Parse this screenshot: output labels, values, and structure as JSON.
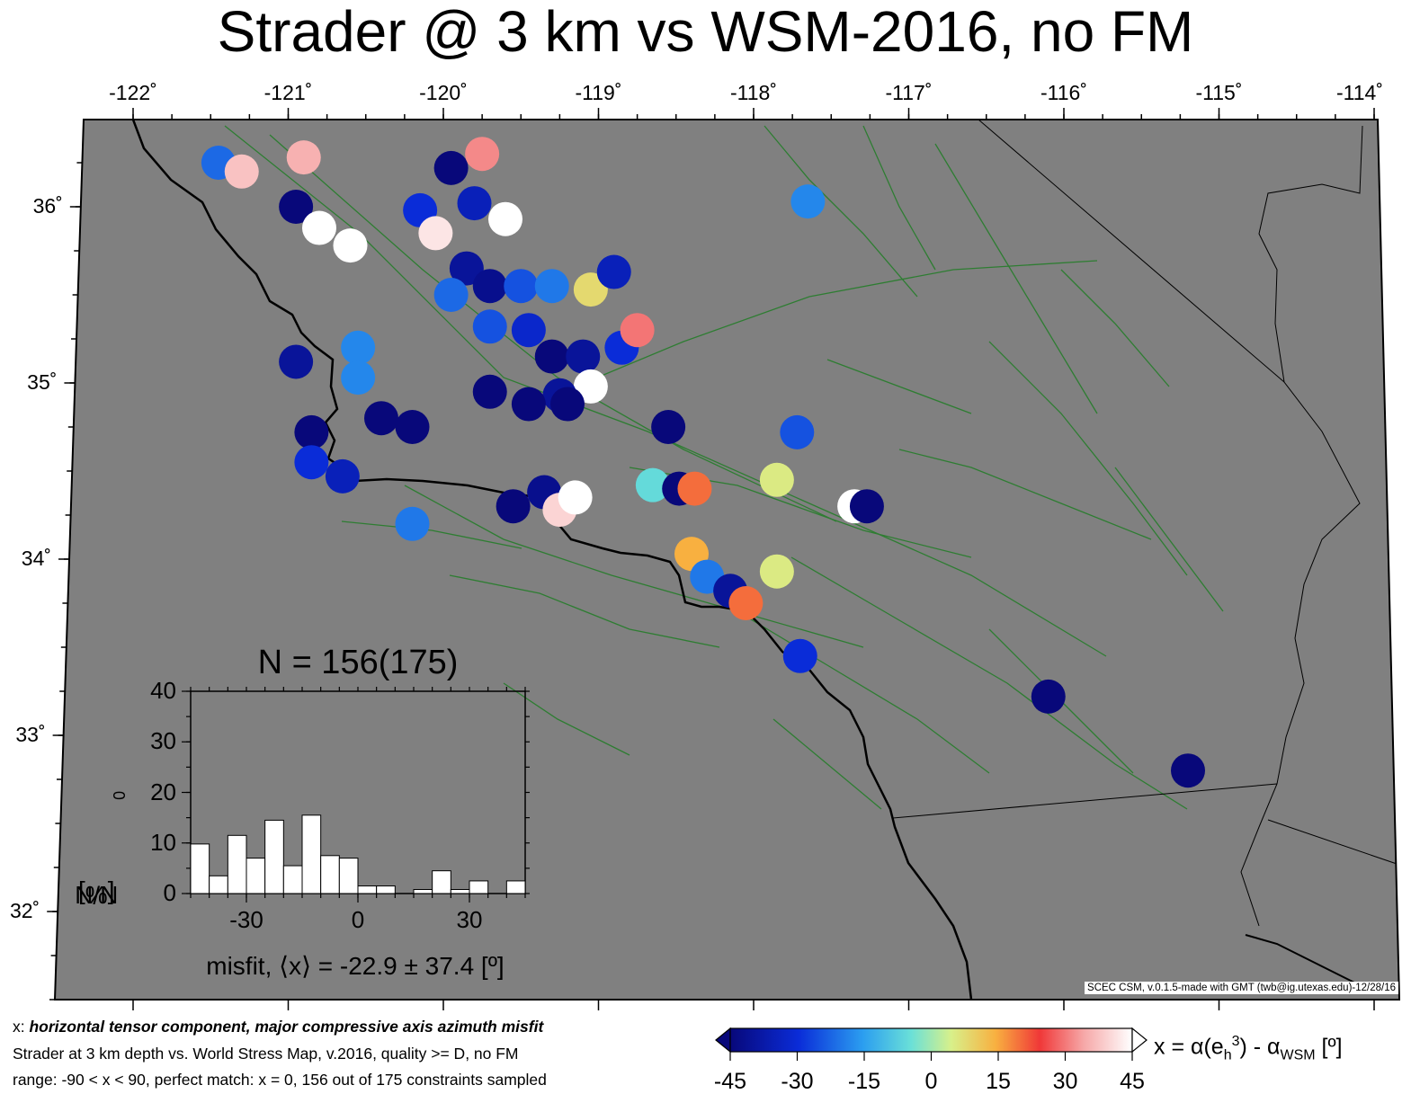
{
  "title": "Strader @ 3 km vs WSM-2016, no FM",
  "map": {
    "lon_ticks": [
      {
        "value": -122,
        "label": "-122˚"
      },
      {
        "value": -121,
        "label": "-121˚"
      },
      {
        "value": -120,
        "label": "-120˚"
      },
      {
        "value": -119,
        "label": "-119˚"
      },
      {
        "value": -118,
        "label": "-118˚"
      },
      {
        "value": -117,
        "label": "-117˚"
      },
      {
        "value": -116,
        "label": "-116˚"
      },
      {
        "value": -115,
        "label": "-115˚"
      },
      {
        "value": -114,
        "label": "-114˚"
      }
    ],
    "lat_ticks": [
      {
        "value": 36,
        "label": "36˚"
      },
      {
        "value": 35,
        "label": "35˚"
      },
      {
        "value": 34,
        "label": "34˚"
      },
      {
        "value": 33,
        "label": "33˚"
      },
      {
        "value": 32,
        "label": "32˚"
      }
    ],
    "background_color": "#808080",
    "coast_color": "#000000",
    "fault_color": "#2e7d32",
    "misfit_patches": [
      {
        "lon": -121.45,
        "lat": 36.25,
        "value": -22
      },
      {
        "lon": -121.3,
        "lat": 36.2,
        "value": 38
      },
      {
        "lon": -120.9,
        "lat": 36.28,
        "value": 36
      },
      {
        "lon": -120.95,
        "lat": 36.0,
        "value": -45
      },
      {
        "lon": -120.8,
        "lat": 35.88,
        "value": 45
      },
      {
        "lon": -120.6,
        "lat": 35.78,
        "value": 45
      },
      {
        "lon": -119.95,
        "lat": 36.22,
        "value": -45
      },
      {
        "lon": -119.75,
        "lat": 36.3,
        "value": 32
      },
      {
        "lon": -119.8,
        "lat": 36.02,
        "value": -35
      },
      {
        "lon": -119.6,
        "lat": 35.93,
        "value": 45
      },
      {
        "lon": -120.15,
        "lat": 35.98,
        "value": -30
      },
      {
        "lon": -120.05,
        "lat": 35.85,
        "value": 42
      },
      {
        "lon": -119.85,
        "lat": 35.65,
        "value": -40
      },
      {
        "lon": -119.95,
        "lat": 35.5,
        "value": -22
      },
      {
        "lon": -119.7,
        "lat": 35.55,
        "value": -42
      },
      {
        "lon": -119.5,
        "lat": 35.55,
        "value": -25
      },
      {
        "lon": -119.3,
        "lat": 35.55,
        "value": -20
      },
      {
        "lon": -119.7,
        "lat": 35.32,
        "value": -25
      },
      {
        "lon": -119.45,
        "lat": 35.3,
        "value": -32
      },
      {
        "lon": -119.3,
        "lat": 35.15,
        "value": -45
      },
      {
        "lon": -119.1,
        "lat": 35.15,
        "value": -40
      },
      {
        "lon": -118.85,
        "lat": 35.2,
        "value": -30
      },
      {
        "lon": -118.75,
        "lat": 35.3,
        "value": 30
      },
      {
        "lon": -119.05,
        "lat": 35.53,
        "value": 8
      },
      {
        "lon": -118.9,
        "lat": 35.63,
        "value": -35
      },
      {
        "lon": -119.05,
        "lat": 34.98,
        "value": 45
      },
      {
        "lon": -119.25,
        "lat": 34.93,
        "value": -40
      },
      {
        "lon": -119.7,
        "lat": 34.95,
        "value": -45
      },
      {
        "lon": -119.45,
        "lat": 34.88,
        "value": -45
      },
      {
        "lon": -119.2,
        "lat": 34.88,
        "value": -45
      },
      {
        "lon": -120.55,
        "lat": 35.2,
        "value": -18
      },
      {
        "lon": -120.95,
        "lat": 35.12,
        "value": -40
      },
      {
        "lon": -120.55,
        "lat": 35.03,
        "value": -18
      },
      {
        "lon": -120.4,
        "lat": 34.8,
        "value": -45
      },
      {
        "lon": -120.2,
        "lat": 34.75,
        "value": -45
      },
      {
        "lon": -120.85,
        "lat": 34.72,
        "value": -45
      },
      {
        "lon": -120.85,
        "lat": 34.55,
        "value": -30
      },
      {
        "lon": -120.65,
        "lat": 34.47,
        "value": -35
      },
      {
        "lon": -120.2,
        "lat": 34.2,
        "value": -20
      },
      {
        "lon": -119.55,
        "lat": 34.3,
        "value": -45
      },
      {
        "lon": -119.35,
        "lat": 34.38,
        "value": -42
      },
      {
        "lon": -119.25,
        "lat": 34.28,
        "value": 40
      },
      {
        "lon": -119.15,
        "lat": 34.35,
        "value": 45
      },
      {
        "lon": -118.65,
        "lat": 34.42,
        "value": -5
      },
      {
        "lon": -118.48,
        "lat": 34.4,
        "value": -45
      },
      {
        "lon": -118.38,
        "lat": 34.4,
        "value": 20
      },
      {
        "lon": -118.4,
        "lat": 34.03,
        "value": 15
      },
      {
        "lon": -118.3,
        "lat": 33.9,
        "value": -20
      },
      {
        "lon": -118.15,
        "lat": 33.82,
        "value": -40
      },
      {
        "lon": -118.05,
        "lat": 33.75,
        "value": 20
      },
      {
        "lon": -117.85,
        "lat": 33.93,
        "value": 5
      },
      {
        "lon": -117.85,
        "lat": 34.45,
        "value": 5
      },
      {
        "lon": -117.72,
        "lat": 34.72,
        "value": -25
      },
      {
        "lon": -118.55,
        "lat": 34.75,
        "value": -45
      },
      {
        "lon": -117.65,
        "lat": 36.03,
        "value": -18
      },
      {
        "lon": -117.35,
        "lat": 34.3,
        "value": 45
      },
      {
        "lon": -117.27,
        "lat": 34.3,
        "value": -45
      },
      {
        "lon": -117.7,
        "lat": 33.45,
        "value": -30
      },
      {
        "lon": -116.1,
        "lat": 33.22,
        "value": -45
      },
      {
        "lon": -115.2,
        "lat": 32.8,
        "value": -45
      }
    ]
  },
  "colorbar": {
    "ticks": [
      "-45",
      "-30",
      "-15",
      "0",
      "15",
      "30",
      "45"
    ],
    "label_prefix": "x = α(e",
    "label_sub": "h",
    "label_sup": "3",
    "label_mid": ") - α",
    "label_sub2": "WSM",
    "label_suffix": " [º]"
  },
  "histogram": {
    "n_label": "N = 156(175)",
    "misfit_label": "misfit, ⟨x⟩ = -22.9 ± 37.4 [º]",
    "ylabel_main": "N/N",
    "ylabel_sub": "0",
    "ylabel_unit": " [%]"
  },
  "chart_data": {
    "type": "bar",
    "title": "N = 156(175)",
    "xlabel": "misfit, ⟨x⟩ = -22.9 ± 37.4 [º]",
    "ylabel": "N/N0 [%]",
    "x_bin_edges": [
      -45,
      -40,
      -35,
      -30,
      -25,
      -20,
      -15,
      -10,
      -5,
      0,
      5,
      10,
      15,
      20,
      25,
      30,
      35,
      40,
      45
    ],
    "values": [
      9.8,
      3.5,
      11.5,
      7,
      14.5,
      5.5,
      15.5,
      7.5,
      7,
      1.5,
      1.5,
      0,
      0.8,
      4.5,
      0.8,
      2.5,
      0,
      2.5
    ],
    "xlim": [
      -45,
      45
    ],
    "ylim": [
      0,
      40
    ],
    "x_ticks": [
      "-30",
      "0",
      "30"
    ],
    "y_ticks": [
      "0",
      "10",
      "20",
      "30",
      "40"
    ],
    "bar_color": "#ffffff"
  },
  "captions": {
    "line1_lead": "x: ",
    "line1_main": "horizontal tensor component, major compressive axis azimuth misfit",
    "line2": "Strader at 3 km depth vs.  World Stress Map, v.2016, quality >= D, no FM",
    "line3": "range: -90 < x < 90, perfect match: x = 0, 156 out of 175 constraints sampled"
  },
  "credit": "SCEC CSM, v.0.1.5-made with GMT (twb@ig.utexas.edu)-12/28/16"
}
